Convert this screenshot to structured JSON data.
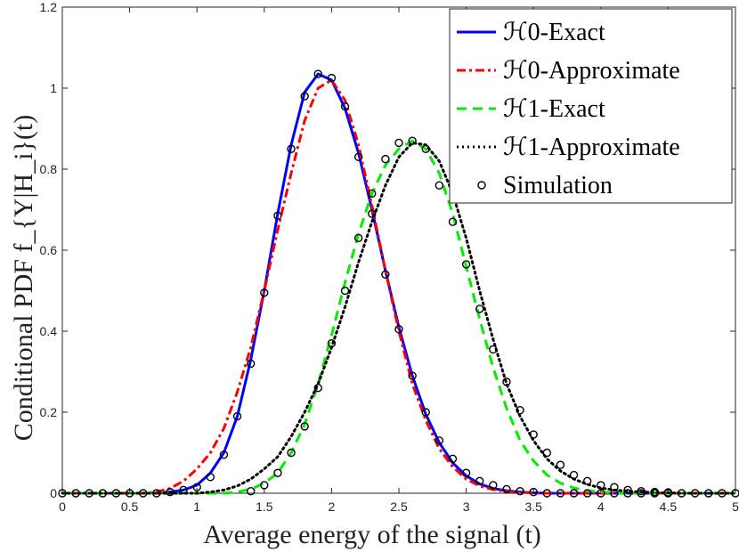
{
  "chart_data": {
    "type": "line",
    "title": "",
    "xlabel": "Average energy of the signal (t)",
    "ylabel": "Conditional PDF f_{Y|H_i}(t)",
    "xlim": [
      0,
      5
    ],
    "ylim": [
      0,
      1.2
    ],
    "grid": false,
    "legend_position": "top-right",
    "x_ticks": [
      "0",
      "0.5",
      "1",
      "1.5",
      "2",
      "2.5",
      "3",
      "3.5",
      "4",
      "4.5",
      "5"
    ],
    "y_ticks": [
      "0",
      "0.2",
      "0.4",
      "0.6",
      "0.8",
      "1",
      "1.2"
    ],
    "x": [
      0,
      0.1,
      0.2,
      0.3,
      0.4,
      0.5,
      0.6,
      0.7,
      0.8,
      0.9,
      1.0,
      1.1,
      1.2,
      1.3,
      1.4,
      1.5,
      1.6,
      1.7,
      1.8,
      1.9,
      2.0,
      2.1,
      2.2,
      2.3,
      2.4,
      2.5,
      2.6,
      2.7,
      2.8,
      2.9,
      3.0,
      3.1,
      3.2,
      3.3,
      3.4,
      3.5,
      3.6,
      3.7,
      3.8,
      3.9,
      4.0,
      4.1,
      4.2,
      4.3,
      4.4,
      4.5,
      4.6,
      4.7,
      4.8,
      4.9,
      5.0
    ],
    "series": [
      {
        "name": "H0-Exact",
        "legend_label": "ℋ0-Exact",
        "color": "#0000ff",
        "style": "solid",
        "values": [
          0,
          0,
          0,
          0,
          0,
          0,
          0,
          0,
          0.003,
          0.008,
          0.02,
          0.05,
          0.1,
          0.19,
          0.33,
          0.5,
          0.69,
          0.86,
          0.99,
          1.035,
          1.02,
          0.95,
          0.84,
          0.7,
          0.55,
          0.41,
          0.29,
          0.195,
          0.125,
          0.075,
          0.043,
          0.023,
          0.012,
          0.006,
          0.003,
          0.001,
          0,
          0,
          0,
          0,
          0,
          0,
          0,
          0,
          0,
          0,
          0,
          0,
          0,
          0,
          0
        ]
      },
      {
        "name": "H0-Approximate",
        "legend_label": "ℋ0-Approximate",
        "color": "#ff0000",
        "style": "dash-dot",
        "values": [
          0,
          0,
          0,
          0,
          0,
          0,
          0,
          0.003,
          0.012,
          0.03,
          0.06,
          0.1,
          0.16,
          0.25,
          0.36,
          0.5,
          0.65,
          0.79,
          0.92,
          1.0,
          1.02,
          0.97,
          0.86,
          0.71,
          0.55,
          0.4,
          0.27,
          0.18,
          0.11,
          0.065,
          0.035,
          0.018,
          0.009,
          0.004,
          0.002,
          0.001,
          0,
          0,
          0,
          0,
          0,
          0,
          0,
          0,
          0,
          0,
          0,
          0,
          0,
          0,
          0
        ]
      },
      {
        "name": "H1-Exact",
        "legend_label": "ℋ1-Exact",
        "color": "#00ee00",
        "style": "dashed",
        "values": [
          0,
          0,
          0,
          0,
          0,
          0,
          0,
          0,
          0,
          0,
          0,
          0,
          0,
          0.003,
          0.01,
          0.025,
          0.05,
          0.1,
          0.17,
          0.27,
          0.39,
          0.52,
          0.64,
          0.74,
          0.81,
          0.85,
          0.87,
          0.85,
          0.79,
          0.69,
          0.56,
          0.43,
          0.31,
          0.21,
          0.13,
          0.08,
          0.045,
          0.025,
          0.013,
          0.006,
          0.003,
          0.001,
          0,
          0,
          0,
          0,
          0,
          0,
          0,
          0,
          0
        ]
      },
      {
        "name": "H1-Approximate",
        "legend_label": "ℋ1-Approximate",
        "color": "#000000",
        "style": "dotted",
        "values": [
          0,
          0,
          0,
          0,
          0,
          0,
          0,
          0,
          0,
          0,
          0,
          0.003,
          0.008,
          0.018,
          0.035,
          0.06,
          0.09,
          0.14,
          0.2,
          0.27,
          0.36,
          0.46,
          0.57,
          0.67,
          0.76,
          0.83,
          0.865,
          0.86,
          0.82,
          0.74,
          0.63,
          0.5,
          0.38,
          0.27,
          0.19,
          0.13,
          0.085,
          0.055,
          0.035,
          0.022,
          0.013,
          0.008,
          0.005,
          0.003,
          0.002,
          0.001,
          0,
          0,
          0,
          0,
          0
        ]
      },
      {
        "name": "Simulation",
        "legend_label": "Simulation",
        "color": "#000000",
        "style": "circle-markers",
        "points": [
          [
            0,
            0
          ],
          [
            0.1,
            0
          ],
          [
            0.2,
            0
          ],
          [
            0.3,
            0
          ],
          [
            0.4,
            0
          ],
          [
            0.5,
            0
          ],
          [
            0.6,
            0
          ],
          [
            0.7,
            0
          ],
          [
            0.8,
            0.003
          ],
          [
            0.9,
            0.008
          ],
          [
            1.0,
            0.015
          ],
          [
            1.1,
            0.04
          ],
          [
            1.2,
            0.095
          ],
          [
            1.3,
            0.19
          ],
          [
            1.4,
            0.32
          ],
          [
            1.5,
            0.495
          ],
          [
            1.6,
            0.685
          ],
          [
            1.7,
            0.85
          ],
          [
            1.8,
            0.98
          ],
          [
            1.9,
            1.035
          ],
          [
            2.0,
            1.025
          ],
          [
            2.1,
            0.955
          ],
          [
            2.2,
            0.83
          ],
          [
            2.3,
            0.69
          ],
          [
            2.4,
            0.54
          ],
          [
            2.5,
            0.405
          ],
          [
            2.6,
            0.29
          ],
          [
            2.7,
            0.2
          ],
          [
            2.8,
            0.13
          ],
          [
            2.9,
            0.085
          ],
          [
            3.0,
            0.05
          ],
          [
            3.1,
            0.03
          ],
          [
            3.2,
            0.02
          ],
          [
            3.3,
            0.01
          ],
          [
            3.4,
            0.005
          ],
          [
            3.5,
            0.003
          ],
          [
            3.6,
            0
          ],
          [
            3.7,
            0
          ],
          [
            3.8,
            0
          ],
          [
            3.9,
            0
          ],
          [
            4.0,
            0
          ],
          [
            4.1,
            0
          ],
          [
            4.2,
            0
          ],
          [
            4.3,
            0
          ],
          [
            4.4,
            0
          ],
          [
            4.5,
            0
          ],
          [
            4.6,
            0
          ],
          [
            4.7,
            0
          ],
          [
            4.8,
            0
          ],
          [
            4.9,
            0
          ],
          [
            5.0,
            0
          ],
          [
            1.4,
            0.005
          ],
          [
            1.5,
            0.02
          ],
          [
            1.6,
            0.05
          ],
          [
            1.7,
            0.1
          ],
          [
            1.8,
            0.165
          ],
          [
            1.9,
            0.26
          ],
          [
            2.0,
            0.37
          ],
          [
            2.1,
            0.5
          ],
          [
            2.2,
            0.63
          ],
          [
            2.3,
            0.74
          ],
          [
            2.4,
            0.825
          ],
          [
            2.5,
            0.865
          ],
          [
            2.6,
            0.87
          ],
          [
            2.7,
            0.85
          ],
          [
            2.8,
            0.76
          ],
          [
            2.9,
            0.67
          ],
          [
            3.0,
            0.565
          ],
          [
            3.1,
            0.455
          ],
          [
            3.2,
            0.355
          ],
          [
            3.3,
            0.275
          ],
          [
            3.4,
            0.205
          ],
          [
            3.5,
            0.145
          ],
          [
            3.6,
            0.1
          ],
          [
            3.7,
            0.07
          ],
          [
            3.8,
            0.045
          ],
          [
            3.9,
            0.03
          ],
          [
            4.0,
            0.02
          ],
          [
            4.1,
            0.015
          ],
          [
            4.2,
            0.008
          ],
          [
            4.3,
            0.005
          ],
          [
            4.4,
            0.003
          ],
          [
            4.5,
            0.002
          ]
        ]
      }
    ]
  }
}
